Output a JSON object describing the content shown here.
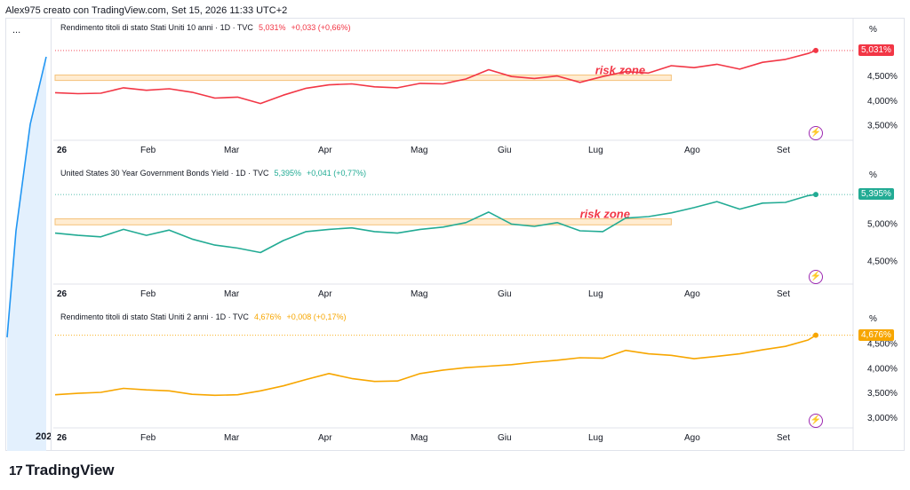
{
  "header": {
    "attribution": "Alex975 creato con TradingView.com, Set 15, 2026 11:33 UTC+2"
  },
  "left_pane": {
    "menu": "...",
    "year_label": "202"
  },
  "brand": {
    "mark": "17",
    "name": "TradingView"
  },
  "x_axis": {
    "labels": [
      "26",
      "Feb",
      "Mar",
      "Apr",
      "Mag",
      "Giu",
      "Lug",
      "Ago",
      "Set"
    ]
  },
  "unit_label": "%",
  "annotation": "risk zone",
  "colors": {
    "us10": "#f23645",
    "us30": "#22ab94",
    "us2": "#f7a600",
    "zone_fill": "#ffe0b2",
    "zone_stroke": "#f5c27a",
    "event": "#9c27b0"
  },
  "chart_data": [
    {
      "type": "line",
      "title": "Rendimento titoli di stato Stati Uniti 10 anni · 1D · TVC",
      "last_value": "5,031%",
      "change": "+0,033 (+0,66%)",
      "y_ticks": [
        "4,500%",
        "4,000%",
        "3,500%"
      ],
      "y_tick_values": [
        4.5,
        4.0,
        3.5
      ],
      "ylim": [
        3.2,
        5.3
      ],
      "zone": {
        "low": 4.42,
        "high": 4.53,
        "x_end": 0.81,
        "label_x": 0.71
      },
      "x": [
        0.0,
        0.03,
        0.06,
        0.09,
        0.12,
        0.15,
        0.18,
        0.21,
        0.24,
        0.27,
        0.3,
        0.33,
        0.36,
        0.39,
        0.42,
        0.45,
        0.48,
        0.51,
        0.54,
        0.57,
        0.6,
        0.63,
        0.66,
        0.69,
        0.72,
        0.75,
        0.78,
        0.81,
        0.84,
        0.87,
        0.9,
        0.93,
        0.96,
        0.99,
        1.0
      ],
      "values": [
        4.17,
        4.15,
        4.16,
        4.27,
        4.22,
        4.25,
        4.18,
        4.06,
        4.08,
        3.95,
        4.12,
        4.26,
        4.33,
        4.35,
        4.29,
        4.27,
        4.36,
        4.35,
        4.45,
        4.64,
        4.5,
        4.46,
        4.51,
        4.38,
        4.5,
        4.6,
        4.57,
        4.72,
        4.68,
        4.75,
        4.65,
        4.79,
        4.85,
        4.97,
        5.03
      ]
    },
    {
      "type": "line",
      "title": "United States 30 Year Government Bonds Yield · 1D · TVC",
      "last_value": "5,395%",
      "change": "+0,041 (+0,77%)",
      "y_ticks": [
        "5,000%",
        "4,500%"
      ],
      "y_tick_values": [
        5.0,
        4.5
      ],
      "ylim": [
        4.2,
        5.55
      ],
      "zone": {
        "low": 4.99,
        "high": 5.07,
        "x_end": 0.81,
        "label_x": 0.69
      },
      "x": [
        0.0,
        0.03,
        0.06,
        0.09,
        0.12,
        0.15,
        0.18,
        0.21,
        0.24,
        0.27,
        0.3,
        0.33,
        0.36,
        0.39,
        0.42,
        0.45,
        0.48,
        0.51,
        0.54,
        0.57,
        0.6,
        0.63,
        0.66,
        0.69,
        0.72,
        0.75,
        0.78,
        0.81,
        0.84,
        0.87,
        0.9,
        0.93,
        0.96,
        0.99,
        1.0
      ],
      "values": [
        4.88,
        4.85,
        4.83,
        4.93,
        4.85,
        4.92,
        4.8,
        4.72,
        4.68,
        4.62,
        4.78,
        4.9,
        4.93,
        4.95,
        4.9,
        4.88,
        4.93,
        4.96,
        5.02,
        5.16,
        5.0,
        4.97,
        5.02,
        4.91,
        4.9,
        5.08,
        5.1,
        5.15,
        5.22,
        5.3,
        5.2,
        5.28,
        5.29,
        5.38,
        5.395
      ]
    },
    {
      "type": "line",
      "title": "Rendimento titoli di stato Stati Uniti 2 anni · 1D · TVC",
      "last_value": "4,676%",
      "change": "+0,008 (+0,17%)",
      "y_ticks": [
        "4,500%",
        "4,000%",
        "3,500%",
        "3,000%"
      ],
      "y_tick_values": [
        4.5,
        4.0,
        3.5,
        3.0
      ],
      "ylim": [
        2.8,
        4.85
      ],
      "x": [
        0.0,
        0.03,
        0.06,
        0.09,
        0.12,
        0.15,
        0.18,
        0.21,
        0.24,
        0.27,
        0.3,
        0.33,
        0.36,
        0.39,
        0.42,
        0.45,
        0.48,
        0.51,
        0.54,
        0.57,
        0.6,
        0.63,
        0.66,
        0.69,
        0.72,
        0.75,
        0.78,
        0.81,
        0.84,
        0.87,
        0.9,
        0.93,
        0.96,
        0.99,
        1.0
      ],
      "values": [
        3.47,
        3.5,
        3.52,
        3.6,
        3.57,
        3.55,
        3.48,
        3.46,
        3.47,
        3.55,
        3.65,
        3.78,
        3.9,
        3.8,
        3.74,
        3.75,
        3.9,
        3.97,
        4.02,
        4.05,
        4.08,
        4.13,
        4.17,
        4.22,
        4.21,
        4.37,
        4.3,
        4.27,
        4.2,
        4.25,
        4.3,
        4.38,
        4.45,
        4.58,
        4.676
      ]
    }
  ]
}
